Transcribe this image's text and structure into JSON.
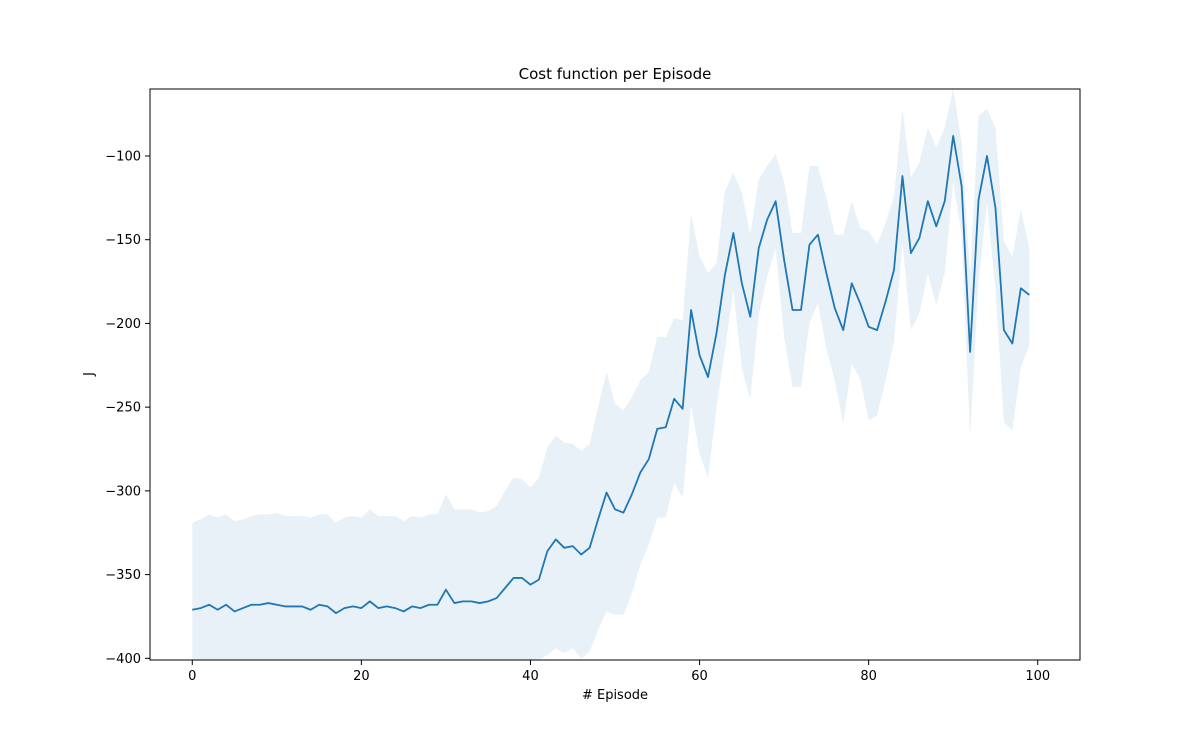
{
  "chart_data": {
    "type": "line",
    "title": "Cost function per Episode",
    "xlabel": "# Episode",
    "ylabel": "J",
    "xlim": [
      -5,
      105
    ],
    "ylim": [
      -401,
      -60
    ],
    "xticks": [
      0,
      20,
      40,
      60,
      80,
      100
    ],
    "yticks": [
      -400,
      -350,
      -300,
      -250,
      -200,
      -150,
      -100
    ],
    "grid": false,
    "colors": {
      "line": "#1f77b4",
      "band": "#1f77b4"
    },
    "series": [
      {
        "kind": "mean_line",
        "x": [
          0,
          1,
          2,
          3,
          4,
          5,
          6,
          7,
          8,
          9,
          10,
          11,
          12,
          13,
          14,
          15,
          16,
          17,
          18,
          19,
          20,
          21,
          22,
          23,
          24,
          25,
          26,
          27,
          28,
          29,
          30,
          31,
          32,
          33,
          34,
          35,
          36,
          37,
          38,
          39,
          40,
          41,
          42,
          43,
          44,
          45,
          46,
          47,
          48,
          49,
          50,
          51,
          52,
          53,
          54,
          55,
          56,
          57,
          58,
          59,
          60,
          61,
          62,
          63,
          64,
          65,
          66,
          67,
          68,
          69,
          70,
          71,
          72,
          73,
          74,
          75,
          76,
          77,
          78,
          79,
          80,
          81,
          82,
          83,
          84,
          85,
          86,
          87,
          88,
          89,
          90,
          91,
          92,
          93,
          94,
          95,
          96,
          97,
          98,
          99
        ],
        "y": [
          -371,
          -370,
          -368,
          -371,
          -368,
          -372,
          -370,
          -368,
          -368,
          -367,
          -368,
          -369,
          -369,
          -369,
          -371,
          -368,
          -369,
          -373,
          -370,
          -369,
          -370,
          -366,
          -370,
          -369,
          -370,
          -372,
          -369,
          -370,
          -368,
          -368,
          -359,
          -367,
          -366,
          -366,
          -367,
          -366,
          -364,
          -358,
          -352,
          -352,
          -356,
          -353,
          -336,
          -329,
          -334,
          -333,
          -338,
          -334,
          -317,
          -301,
          -311,
          -313,
          -302,
          -289,
          -281,
          -263,
          -262,
          -245,
          -251,
          -192,
          -219,
          -232,
          -206,
          -171,
          -146,
          -176,
          -196,
          -155,
          -138,
          -127,
          -162,
          -192,
          -192,
          -153,
          -147,
          -170,
          -191,
          -204,
          -176,
          -188,
          -202,
          -204,
          -187,
          -168,
          -112,
          -158,
          -149,
          -127,
          -142,
          -127,
          -88,
          -118,
          -217,
          -126,
          -100,
          -131,
          -204,
          -212,
          -179,
          -183
        ]
      },
      {
        "kind": "band_upper",
        "y": [
          -319,
          -317,
          -314,
          -316,
          -314,
          -318,
          -317,
          -315,
          -314,
          -314,
          -313,
          -315,
          -315,
          -315,
          -316,
          -314,
          -314,
          -319,
          -316,
          -315,
          -316,
          -311,
          -315,
          -315,
          -315,
          -318,
          -315,
          -316,
          -314,
          -314,
          -302,
          -311,
          -311,
          -311,
          -313,
          -312,
          -309,
          -300,
          -292,
          -293,
          -298,
          -292,
          -274,
          -267,
          -271,
          -272,
          -276,
          -272,
          -250,
          -229,
          -248,
          -252,
          -244,
          -234,
          -229,
          -208,
          -208,
          -197,
          -198,
          -135,
          -160,
          -170,
          -164,
          -121,
          -110,
          -122,
          -147,
          -114,
          -106,
          -99,
          -115,
          -146,
          -146,
          -106,
          -106,
          -125,
          -147,
          -147,
          -127,
          -143,
          -145,
          -153,
          -140,
          -124,
          -72,
          -113,
          -104,
          -83,
          -95,
          -83,
          -60,
          -92,
          -171,
          -76,
          -72,
          -83,
          -151,
          -160,
          -132,
          -155
        ]
      },
      {
        "kind": "band_lower",
        "y": [
          -401,
          -401,
          -401,
          -401,
          -401,
          -401,
          -401,
          -401,
          -401,
          -401,
          -401,
          -401,
          -401,
          -401,
          -401,
          -401,
          -401,
          -401,
          -401,
          -401,
          -401,
          -401,
          -401,
          -401,
          -401,
          -401,
          -401,
          -401,
          -401,
          -401,
          -401,
          -401,
          -401,
          -401,
          -401,
          -401,
          -401,
          -401,
          -401,
          -401,
          -401,
          -401,
          -398,
          -394,
          -397,
          -394,
          -400,
          -396,
          -383,
          -372,
          -374,
          -374,
          -361,
          -344,
          -332,
          -316,
          -316,
          -295,
          -304,
          -249,
          -278,
          -292,
          -250,
          -216,
          -180,
          -227,
          -245,
          -195,
          -172,
          -155,
          -208,
          -238,
          -238,
          -200,
          -188,
          -215,
          -234,
          -260,
          -224,
          -233,
          -258,
          -255,
          -234,
          -211,
          -152,
          -204,
          -194,
          -170,
          -189,
          -170,
          -115,
          -147,
          -268,
          -175,
          -128,
          -180,
          -259,
          -264,
          -226,
          -213
        ]
      }
    ]
  }
}
